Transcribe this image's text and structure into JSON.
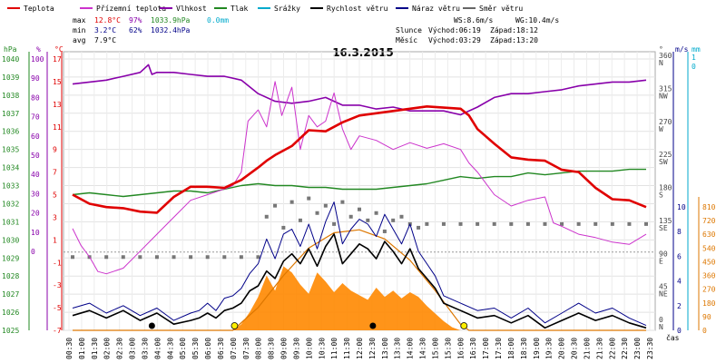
{
  "chart_data": {
    "type": "line",
    "date": "16.3.2015",
    "legend": [
      {
        "name": "Teplota",
        "color": "#e00000"
      },
      {
        "name": "Přízemní teplota",
        "color": "#cc33cc"
      },
      {
        "name": "Vlhkost",
        "color": "#8800aa"
      },
      {
        "name": "Tlak",
        "color": "#228822"
      },
      {
        "name": "Srážky",
        "color": "#00aacc"
      },
      {
        "name": "Rychlost větru",
        "color": "#000000"
      },
      {
        "name": "Náraz větru",
        "color": "#000088"
      },
      {
        "name": "Směr větru",
        "color": "#666666"
      }
    ],
    "stats": {
      "max": {
        "label": "max",
        "temp": "12.8°C",
        "hum": "97%",
        "press": "1033.9hPa",
        "rain": "0.0mm"
      },
      "min": {
        "label": "min",
        "temp": "3.2°C",
        "hum": "62%",
        "press": "1032.4hPa"
      },
      "avg": {
        "label": "avg",
        "temp": "7.9°C"
      }
    },
    "info": {
      "ws": "WS:8.6m/s",
      "wg": "WG:10.4m/s",
      "sun_label": "Slunce",
      "sun_rise": "Východ:06:19",
      "sun_set": "Západ:18:12",
      "moon_label": "Měsíc",
      "moon_rise": "Východ:03:29",
      "moon_set": "Západ:13:20"
    },
    "axes": {
      "left_units": {
        "hpa": "hPa",
        "pct": "%",
        "deg": "°C"
      },
      "right_units": {
        "dir": "°",
        "ms": "m/s",
        "mm": "mm"
      },
      "pressure_ticks": [
        1040,
        1039,
        1038,
        1037,
        1036,
        1035,
        1034,
        1033,
        1032,
        1031,
        1030,
        1029,
        1028,
        1027,
        1026,
        1025
      ],
      "humidity_ticks": [
        100,
        90,
        80,
        70,
        60,
        50,
        40,
        30,
        20,
        10,
        0
      ],
      "temperature_ticks": [
        17,
        15,
        13,
        11,
        9,
        7,
        5,
        3,
        1,
        -1,
        -3,
        -5,
        -7
      ],
      "direction_ticks": [
        {
          "deg": "360",
          "card": "N"
        },
        {
          "deg": "315",
          "card": "NW"
        },
        {
          "deg": "270",
          "card": "W"
        },
        {
          "deg": "225",
          "card": "SW"
        },
        {
          "deg": "180",
          "card": "S"
        },
        {
          "deg": "135",
          "card": "SE"
        },
        {
          "deg": "90",
          "card": "E"
        },
        {
          "deg": "45",
          "card": "NE"
        },
        {
          "deg": "0",
          "card": "N"
        }
      ],
      "wind_ticks": [
        10,
        8,
        6,
        4,
        2,
        0
      ],
      "rain_ticks": [
        1,
        0
      ],
      "solar_ticks": [
        810,
        720,
        630,
        540,
        450,
        360,
        270,
        180,
        90,
        0
      ],
      "time_labels": [
        "00:30",
        "01:00",
        "01:30",
        "02:00",
        "02:30",
        "03:00",
        "03:30",
        "04:00",
        "04:30",
        "05:00",
        "05:30",
        "06:00",
        "06:30",
        "07:00",
        "07:30",
        "08:00",
        "08:30",
        "09:00",
        "09:30",
        "10:00",
        "10:30",
        "11:00",
        "11:30",
        "12:00",
        "12:30",
        "13:00",
        "13:30",
        "14:00",
        "14:30",
        "15:00",
        "15:30",
        "16:00",
        "16:30",
        "17:00",
        "17:30",
        "18:00",
        "18:30",
        "19:00",
        "19:30",
        "20:00",
        "20:30",
        "21:00",
        "21:30",
        "22:00",
        "22:30",
        "23:00",
        "23:30"
      ],
      "x_label": "čas"
    },
    "temperature": [
      [
        0,
        5
      ],
      [
        1,
        4.2
      ],
      [
        2,
        3.9
      ],
      [
        3,
        3.8
      ],
      [
        4,
        3.5
      ],
      [
        5,
        3.4
      ],
      [
        6,
        4.8
      ],
      [
        7,
        5.7
      ],
      [
        8,
        5.7
      ],
      [
        9,
        5.6
      ],
      [
        10,
        6.3
      ],
      [
        11,
        7.4
      ],
      [
        11.5,
        8.0
      ],
      [
        12,
        8.5
      ],
      [
        13,
        9.3
      ],
      [
        14,
        10.7
      ],
      [
        15,
        10.6
      ],
      [
        16,
        11.4
      ],
      [
        17,
        12.0
      ],
      [
        18,
        12.2
      ],
      [
        19,
        12.4
      ],
      [
        20,
        12.6
      ],
      [
        21,
        12.8
      ],
      [
        22,
        12.7
      ],
      [
        23,
        12.6
      ],
      [
        23.5,
        12.0
      ],
      [
        24,
        10.8
      ],
      [
        25,
        9.5
      ],
      [
        26,
        8.3
      ],
      [
        27,
        8.1
      ],
      [
        28,
        8.0
      ],
      [
        29,
        7.2
      ],
      [
        30,
        7.0
      ],
      [
        31,
        5.6
      ],
      [
        32,
        4.6
      ],
      [
        33,
        4.5
      ],
      [
        34,
        3.9
      ]
    ],
    "ground_temperature": [
      [
        0,
        2
      ],
      [
        0.5,
        0.5
      ],
      [
        1,
        -0.5
      ],
      [
        1.5,
        -1.8
      ],
      [
        2,
        -2
      ],
      [
        3,
        -1.5
      ],
      [
        4,
        0
      ],
      [
        5,
        1.5
      ],
      [
        6,
        3
      ],
      [
        7,
        4.5
      ],
      [
        8,
        5
      ],
      [
        9,
        5.5
      ],
      [
        9.5,
        5.8
      ],
      [
        10,
        7
      ],
      [
        10.4,
        11.5
      ],
      [
        11,
        12.5
      ],
      [
        11.5,
        11
      ],
      [
        12,
        15
      ],
      [
        12.4,
        12
      ],
      [
        13,
        14.5
      ],
      [
        13.5,
        9
      ],
      [
        14,
        12
      ],
      [
        14.5,
        11
      ],
      [
        15,
        11.5
      ],
      [
        15.5,
        14
      ],
      [
        16,
        10.8
      ],
      [
        16.5,
        9
      ],
      [
        17,
        10.2
      ],
      [
        18,
        9.8
      ],
      [
        19,
        9.0
      ],
      [
        20,
        9.6
      ],
      [
        21,
        9.1
      ],
      [
        22,
        9.5
      ],
      [
        23,
        9.0
      ],
      [
        23.5,
        7.8
      ],
      [
        24,
        7
      ],
      [
        25,
        5
      ],
      [
        26,
        4
      ],
      [
        27,
        4.5
      ],
      [
        28,
        4.8
      ],
      [
        28.5,
        2.5
      ],
      [
        29,
        2.2
      ],
      [
        30,
        1.5
      ],
      [
        31,
        1.2
      ],
      [
        32,
        0.8
      ],
      [
        33,
        0.6
      ],
      [
        34,
        1.5
      ]
    ],
    "humidity": [
      [
        0,
        87
      ],
      [
        1,
        88
      ],
      [
        2,
        89
      ],
      [
        3,
        91
      ],
      [
        4,
        93
      ],
      [
        4.5,
        97
      ],
      [
        4.7,
        92
      ],
      [
        5,
        93
      ],
      [
        6,
        93
      ],
      [
        7,
        92
      ],
      [
        8,
        91
      ],
      [
        9,
        91
      ],
      [
        10,
        89
      ],
      [
        11,
        82
      ],
      [
        12,
        78
      ],
      [
        13,
        77
      ],
      [
        14,
        78
      ],
      [
        15,
        80
      ],
      [
        16,
        76
      ],
      [
        17,
        76
      ],
      [
        18,
        74
      ],
      [
        19,
        75
      ],
      [
        20,
        73
      ],
      [
        21,
        73
      ],
      [
        22,
        73
      ],
      [
        23,
        71
      ],
      [
        24,
        75
      ],
      [
        25,
        80
      ],
      [
        26,
        82
      ],
      [
        27,
        82
      ],
      [
        28,
        83
      ],
      [
        29,
        84
      ],
      [
        30,
        86
      ],
      [
        31,
        87
      ],
      [
        32,
        88
      ],
      [
        33,
        88
      ],
      [
        34,
        89
      ]
    ],
    "pressure": [
      [
        0,
        1032.5
      ],
      [
        1,
        1032.6
      ],
      [
        2,
        1032.5
      ],
      [
        3,
        1032.4
      ],
      [
        4,
        1032.5
      ],
      [
        5,
        1032.6
      ],
      [
        6,
        1032.7
      ],
      [
        7,
        1032.7
      ],
      [
        8,
        1032.6
      ],
      [
        9,
        1032.8
      ],
      [
        10,
        1033.0
      ],
      [
        11,
        1033.1
      ],
      [
        12,
        1033.0
      ],
      [
        13,
        1033.0
      ],
      [
        14,
        1032.9
      ],
      [
        15,
        1032.9
      ],
      [
        16,
        1032.8
      ],
      [
        17,
        1032.8
      ],
      [
        18,
        1032.8
      ],
      [
        19,
        1032.9
      ],
      [
        20,
        1033.0
      ],
      [
        21,
        1033.1
      ],
      [
        22,
        1033.3
      ],
      [
        23,
        1033.5
      ],
      [
        24,
        1033.4
      ],
      [
        25,
        1033.5
      ],
      [
        26,
        1033.5
      ],
      [
        27,
        1033.7
      ],
      [
        28,
        1033.6
      ],
      [
        29,
        1033.7
      ],
      [
        30,
        1033.8
      ],
      [
        31,
        1033.8
      ],
      [
        32,
        1033.8
      ],
      [
        33,
        1033.9
      ],
      [
        34,
        1033.9
      ]
    ],
    "wind_speed": [
      [
        0,
        1.2
      ],
      [
        1,
        1.6
      ],
      [
        2,
        1.0
      ],
      [
        3,
        1.6
      ],
      [
        4,
        0.8
      ],
      [
        5,
        1.4
      ],
      [
        6,
        0.5
      ],
      [
        7,
        0.8
      ],
      [
        7.5,
        1.0
      ],
      [
        8,
        1.4
      ],
      [
        8.5,
        1.0
      ],
      [
        9,
        1.6
      ],
      [
        9.5,
        1.8
      ],
      [
        10,
        2.2
      ],
      [
        10.5,
        3.2
      ],
      [
        11,
        3.6
      ],
      [
        11.5,
        4.8
      ],
      [
        12,
        4.2
      ],
      [
        12.5,
        5.6
      ],
      [
        13,
        6.2
      ],
      [
        13.5,
        5.4
      ],
      [
        14,
        6.6
      ],
      [
        14.5,
        5.2
      ],
      [
        15,
        6.8
      ],
      [
        15.5,
        7.8
      ],
      [
        16,
        5.4
      ],
      [
        16.5,
        6.2
      ],
      [
        17,
        7.0
      ],
      [
        17.5,
        6.6
      ],
      [
        18,
        5.8
      ],
      [
        18.5,
        7.2
      ],
      [
        19,
        6.4
      ],
      [
        19.5,
        5.4
      ],
      [
        20,
        6.6
      ],
      [
        20.5,
        5.0
      ],
      [
        21,
        4.2
      ],
      [
        21.5,
        3.4
      ],
      [
        22,
        2.2
      ],
      [
        23,
        1.6
      ],
      [
        24,
        1.0
      ],
      [
        25,
        1.2
      ],
      [
        26,
        0.6
      ],
      [
        27,
        1.2
      ],
      [
        28,
        0.2
      ],
      [
        29,
        0.8
      ],
      [
        30,
        1.4
      ],
      [
        31,
        0.8
      ],
      [
        32,
        1.2
      ],
      [
        33,
        0.6
      ],
      [
        34,
        0.2
      ]
    ],
    "wind_gust": [
      [
        0,
        1.8
      ],
      [
        1,
        2.2
      ],
      [
        2,
        1.4
      ],
      [
        3,
        2.0
      ],
      [
        4,
        1.2
      ],
      [
        5,
        1.8
      ],
      [
        6,
        0.8
      ],
      [
        7,
        1.4
      ],
      [
        7.5,
        1.6
      ],
      [
        8,
        2.2
      ],
      [
        8.5,
        1.6
      ],
      [
        9,
        2.6
      ],
      [
        9.5,
        2.8
      ],
      [
        10,
        3.4
      ],
      [
        10.5,
        4.6
      ],
      [
        11,
        5.4
      ],
      [
        11.5,
        7.4
      ],
      [
        12,
        5.8
      ],
      [
        12.5,
        7.8
      ],
      [
        13,
        8.2
      ],
      [
        13.5,
        6.8
      ],
      [
        14,
        8.6
      ],
      [
        14.5,
        6.6
      ],
      [
        15,
        8.8
      ],
      [
        15.5,
        10.4
      ],
      [
        16,
        7.0
      ],
      [
        16.5,
        8.2
      ],
      [
        17,
        9.0
      ],
      [
        17.5,
        8.6
      ],
      [
        18,
        7.6
      ],
      [
        18.5,
        9.4
      ],
      [
        19,
        8.2
      ],
      [
        19.5,
        7.0
      ],
      [
        20,
        8.6
      ],
      [
        20.5,
        6.4
      ],
      [
        21,
        5.4
      ],
      [
        21.5,
        4.4
      ],
      [
        22,
        2.8
      ],
      [
        23,
        2.2
      ],
      [
        24,
        1.6
      ],
      [
        25,
        1.8
      ],
      [
        26,
        1.0
      ],
      [
        27,
        1.8
      ],
      [
        28,
        0.6
      ],
      [
        29,
        1.4
      ],
      [
        30,
        2.2
      ],
      [
        31,
        1.4
      ],
      [
        32,
        1.8
      ],
      [
        33,
        1.0
      ],
      [
        34,
        0.4
      ]
    ],
    "wind_direction": [
      [
        0,
        90
      ],
      [
        1,
        90
      ],
      [
        2,
        90
      ],
      [
        3,
        90
      ],
      [
        4,
        90
      ],
      [
        5,
        90
      ],
      [
        6,
        90
      ],
      [
        7,
        90
      ],
      [
        8,
        90
      ],
      [
        9,
        90
      ],
      [
        10,
        90
      ],
      [
        11,
        90
      ],
      [
        11.5,
        145
      ],
      [
        12,
        160
      ],
      [
        12.5,
        130
      ],
      [
        13,
        165
      ],
      [
        13.5,
        140
      ],
      [
        14,
        170
      ],
      [
        14.5,
        150
      ],
      [
        15,
        160
      ],
      [
        15.5,
        135
      ],
      [
        16,
        165
      ],
      [
        16.5,
        145
      ],
      [
        17,
        155
      ],
      [
        17.5,
        140
      ],
      [
        18,
        150
      ],
      [
        18.5,
        125
      ],
      [
        19,
        140
      ],
      [
        19.5,
        145
      ],
      [
        20,
        135
      ],
      [
        20.5,
        130
      ],
      [
        21,
        135
      ],
      [
        22,
        135
      ],
      [
        23,
        135
      ],
      [
        24,
        135
      ],
      [
        25,
        135
      ],
      [
        26,
        135
      ],
      [
        27,
        135
      ],
      [
        28,
        135
      ],
      [
        29,
        135
      ],
      [
        30,
        135
      ],
      [
        31,
        135
      ],
      [
        32,
        135
      ],
      [
        33,
        135
      ],
      [
        34,
        135
      ]
    ],
    "solar_radiation": [
      [
        0,
        0
      ],
      [
        9.5,
        0
      ],
      [
        10,
        40
      ],
      [
        10.5,
        120
      ],
      [
        11,
        220
      ],
      [
        11.5,
        360
      ],
      [
        12,
        260
      ],
      [
        12.5,
        420
      ],
      [
        13,
        380
      ],
      [
        13.5,
        300
      ],
      [
        14,
        240
      ],
      [
        14.5,
        380
      ],
      [
        15,
        320
      ],
      [
        15.5,
        250
      ],
      [
        16,
        310
      ],
      [
        16.5,
        260
      ],
      [
        17,
        230
      ],
      [
        17.5,
        200
      ],
      [
        18,
        280
      ],
      [
        18.5,
        220
      ],
      [
        19,
        260
      ],
      [
        19.5,
        210
      ],
      [
        20,
        250
      ],
      [
        20.5,
        220
      ],
      [
        21,
        160
      ],
      [
        21.5,
        110
      ],
      [
        22,
        60
      ],
      [
        22.5,
        20
      ],
      [
        23,
        0
      ],
      [
        34,
        0
      ]
    ],
    "theoretical_solar": [
      [
        0,
        0
      ],
      [
        9.5,
        0
      ],
      [
        11,
        150
      ],
      [
        12.5,
        360
      ],
      [
        14,
        540
      ],
      [
        15.5,
        640
      ],
      [
        17,
        660
      ],
      [
        18.5,
        600
      ],
      [
        20,
        460
      ],
      [
        21.5,
        260
      ],
      [
        23,
        40
      ],
      [
        23.5,
        0
      ],
      [
        34,
        0
      ]
    ],
    "sun_markers": [
      {
        "x": 9.6,
        "type": "sunrise"
      },
      {
        "x": 23.2,
        "type": "sunset"
      }
    ],
    "moon_markers": [
      {
        "x": 4.7,
        "type": "moonrise"
      },
      {
        "x": 17.8,
        "type": "moonset"
      }
    ]
  }
}
